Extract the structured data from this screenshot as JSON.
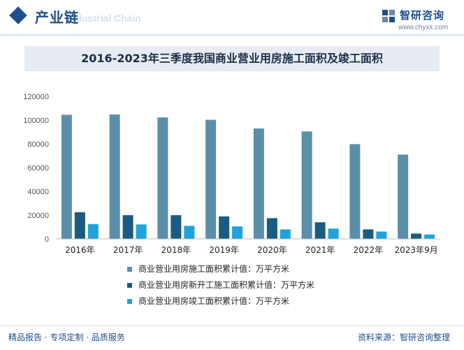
{
  "header": {
    "title": "产业链",
    "subtitle": "Industrial Chain",
    "brand_name": "智研咨询",
    "brand_url": "www.chyxx.com"
  },
  "chart_data": {
    "type": "bar",
    "title": "2016-2023年三季度我国商业营业用房施工面积及竣工面积",
    "categories": [
      "2016年",
      "2017年",
      "2018年",
      "2019年",
      "2020年",
      "2021年",
      "2022年",
      "2023年9月"
    ],
    "series": [
      {
        "name": "商业营业用房施工面积累计值：万平方米",
        "color": "#5b8fa8",
        "values": [
          104500,
          104800,
          102300,
          100300,
          93000,
          90500,
          79800,
          71000
        ]
      },
      {
        "name": "商业营业用房新开工施工面积累计值：万平方米",
        "color": "#1c5b80",
        "values": [
          22500,
          20000,
          20000,
          19000,
          17500,
          14000,
          8000,
          4500
        ]
      },
      {
        "name": "商业营业用房竣工面积累计值：万平方米",
        "color": "#1fa3dc",
        "values": [
          12500,
          12200,
          11000,
          10500,
          8000,
          8700,
          6200,
          3700
        ]
      }
    ],
    "ylim": [
      0,
      120000
    ],
    "yticks": [
      0,
      20000,
      40000,
      60000,
      80000,
      100000,
      120000
    ],
    "grid": false,
    "legend_position": "bottom"
  },
  "footer": {
    "left_text": "精品报告 · 专项定制 · 品质服务",
    "source_text": "资料来源：智研咨询整理"
  }
}
